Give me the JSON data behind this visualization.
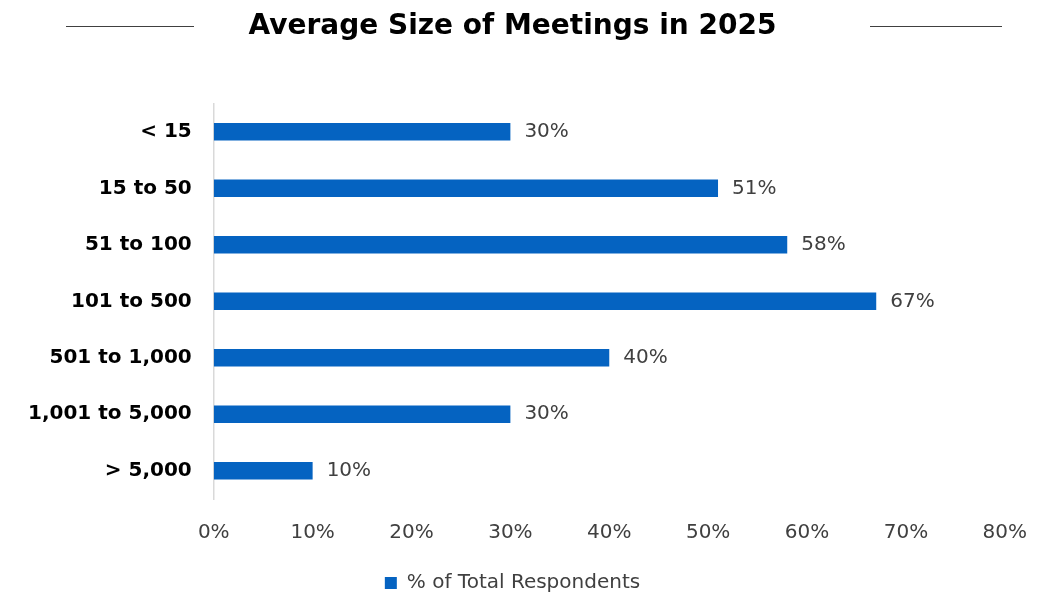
{
  "chart_data": {
    "type": "bar",
    "orientation": "horizontal",
    "title": "Average Size of Meetings in 2025",
    "categories": [
      "< 15",
      "15 to 50",
      "51 to 100",
      "101 to 500",
      "501 to 1,000",
      "1,001 to 5,000",
      "> 5,000"
    ],
    "series": [
      {
        "name": "% of Total Respondents",
        "color": "#0563c1",
        "values": [
          30,
          51,
          58,
          67,
          40,
          30,
          10
        ],
        "value_labels": [
          "30%",
          "51%",
          "58%",
          "67%",
          "40%",
          "30%",
          "10%"
        ]
      }
    ],
    "xlim": [
      0,
      80
    ],
    "xticks": [
      {
        "value": 0,
        "label": "0%"
      },
      {
        "value": 10,
        "label": "10%"
      },
      {
        "value": 20,
        "label": "20%"
      },
      {
        "value": 30,
        "label": "30%"
      },
      {
        "value": 40,
        "label": "40%"
      },
      {
        "value": 50,
        "label": "50%"
      },
      {
        "value": 60,
        "label": "60%"
      },
      {
        "value": 70,
        "label": "70%"
      },
      {
        "value": 80,
        "label": "80%"
      }
    ],
    "grid": false,
    "legend": "bottom"
  }
}
